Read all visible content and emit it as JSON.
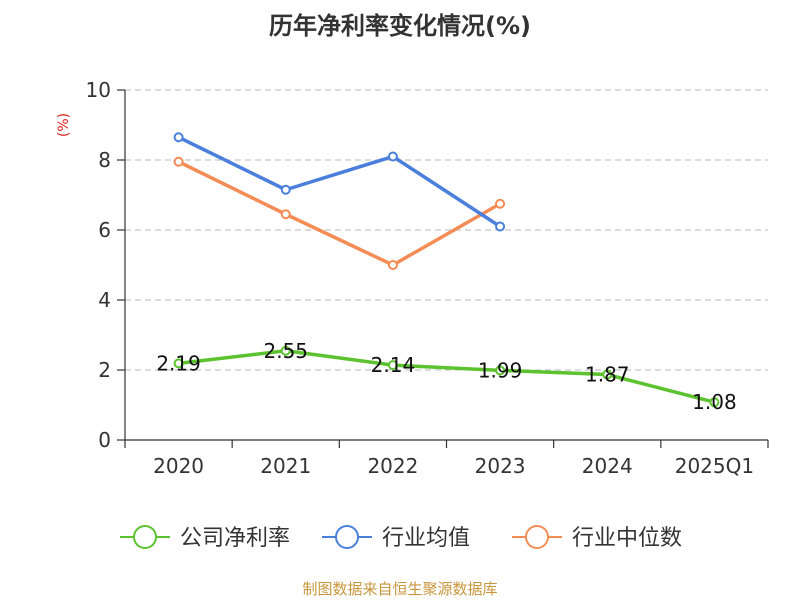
{
  "chart_data": {
    "type": "line",
    "title": "历年净利率变化情况(%)",
    "ylabel": "(%)",
    "xlabel": "",
    "categories": [
      "2020",
      "2021",
      "2022",
      "2023",
      "2024",
      "2025Q1"
    ],
    "ylim": [
      0,
      10
    ],
    "yticks": [
      0,
      2,
      4,
      6,
      8,
      10
    ],
    "grid": true,
    "legend_position": "bottom",
    "series": [
      {
        "name": "公司净利率",
        "color": "#5cc22e",
        "values": [
          2.19,
          2.55,
          2.14,
          1.99,
          1.87,
          1.08
        ],
        "labels": [
          "2.19",
          "2.55",
          "2.14",
          "1.99",
          "1.87",
          "1.08"
        ],
        "show_labels": true
      },
      {
        "name": "行业均值",
        "color": "#4a7fdc",
        "values": [
          8.65,
          7.15,
          8.1,
          6.1,
          null,
          null
        ],
        "show_labels": false
      },
      {
        "name": "行业中位数",
        "color": "#f48c56",
        "values": [
          7.95,
          6.45,
          5.0,
          6.75,
          null,
          null
        ],
        "show_labels": false
      }
    ]
  },
  "footer": {
    "source": "制图数据来自恒生聚源数据库"
  }
}
